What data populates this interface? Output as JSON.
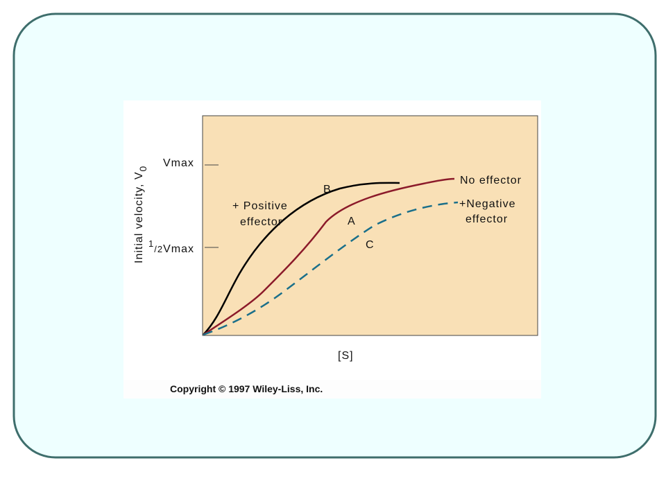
{
  "y_axis": {
    "label": [
      "Initial velocity, V",
      "0"
    ],
    "vmax": "Vmax",
    "half_vmax": [
      "1",
      "/2",
      "V",
      "max"
    ]
  },
  "x_axis": {
    "label": "[S]"
  },
  "curves": {
    "b": {
      "letter": "B",
      "label": [
        "+ Positive",
        "effector"
      ]
    },
    "a": {
      "letter": "A",
      "label": [
        "No effector"
      ]
    },
    "c": {
      "letter": "C",
      "label": [
        "+Negative",
        "effector"
      ]
    }
  },
  "copyright": "Copyright © 1997 Wiley-Liss, Inc."
}
